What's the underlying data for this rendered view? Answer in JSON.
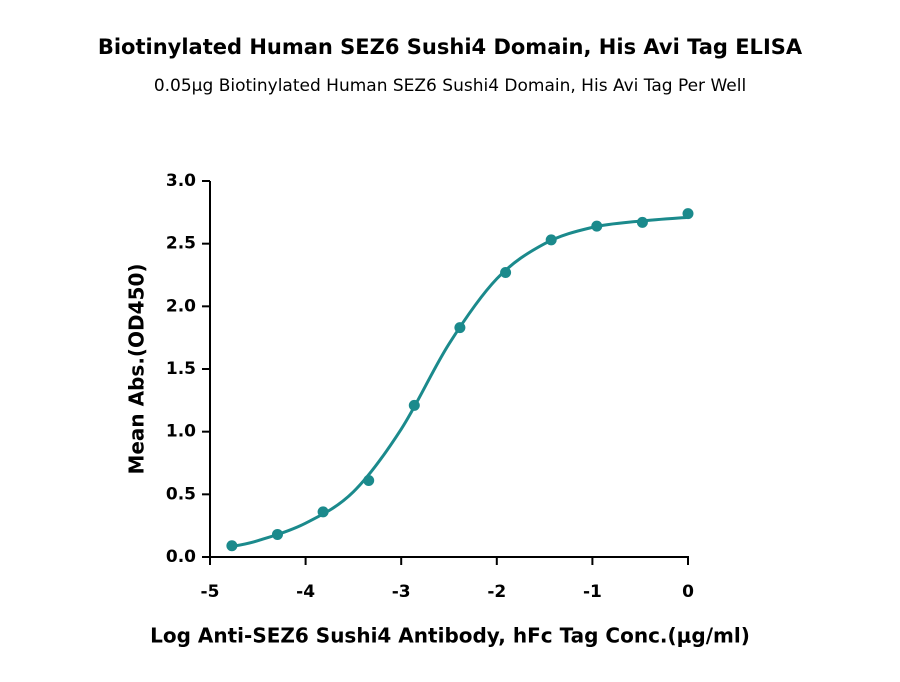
{
  "chart_data": {
    "type": "scatter",
    "title": "Biotinylated Human SEZ6 Sushi4 Domain, His Avi Tag ELISA",
    "subtitle": "0.05μg Biotinylated Human SEZ6 Sushi4 Domain, His Avi Tag Per Well",
    "x_label": "Log Anti-SEZ6 Sushi4 Antibody, hFc Tag Conc.(μg/ml)",
    "y_label": "Mean Abs.(OD450)",
    "xlim": [
      -5,
      0
    ],
    "xticks": [
      -5,
      -4,
      -3,
      -2,
      -1,
      0
    ],
    "ylim": [
      0,
      3
    ],
    "yticks": [
      {
        "value": 0,
        "label": "0.0"
      },
      0.5,
      {
        "value": 1,
        "label": "1.0"
      },
      1.5,
      {
        "value": 2,
        "label": "2.0"
      },
      2.5,
      {
        "value": 3,
        "label": "3.0"
      }
    ],
    "series": [
      {
        "kind": "points",
        "color": "#1b8a8c",
        "x": [
          -4.771,
          -4.294,
          -3.817,
          -3.34,
          -2.863,
          -2.386,
          -1.908,
          -1.431,
          -0.954,
          -0.477,
          0
        ],
        "values": [
          0.09,
          0.18,
          0.36,
          0.61,
          1.21,
          1.83,
          2.27,
          2.53,
          2.64,
          2.67,
          2.74
        ]
      },
      {
        "kind": "line",
        "color": "#1b8a8c",
        "x": [
          -4.8,
          -4.5,
          -4,
          -3.5,
          -3,
          -2.5,
          -2,
          -1.5,
          -1,
          -0.5,
          0
        ],
        "values": [
          0.08,
          0.13,
          0.27,
          0.52,
          1.02,
          1.7,
          2.22,
          2.5,
          2.63,
          2.68,
          2.71
        ]
      }
    ]
  }
}
